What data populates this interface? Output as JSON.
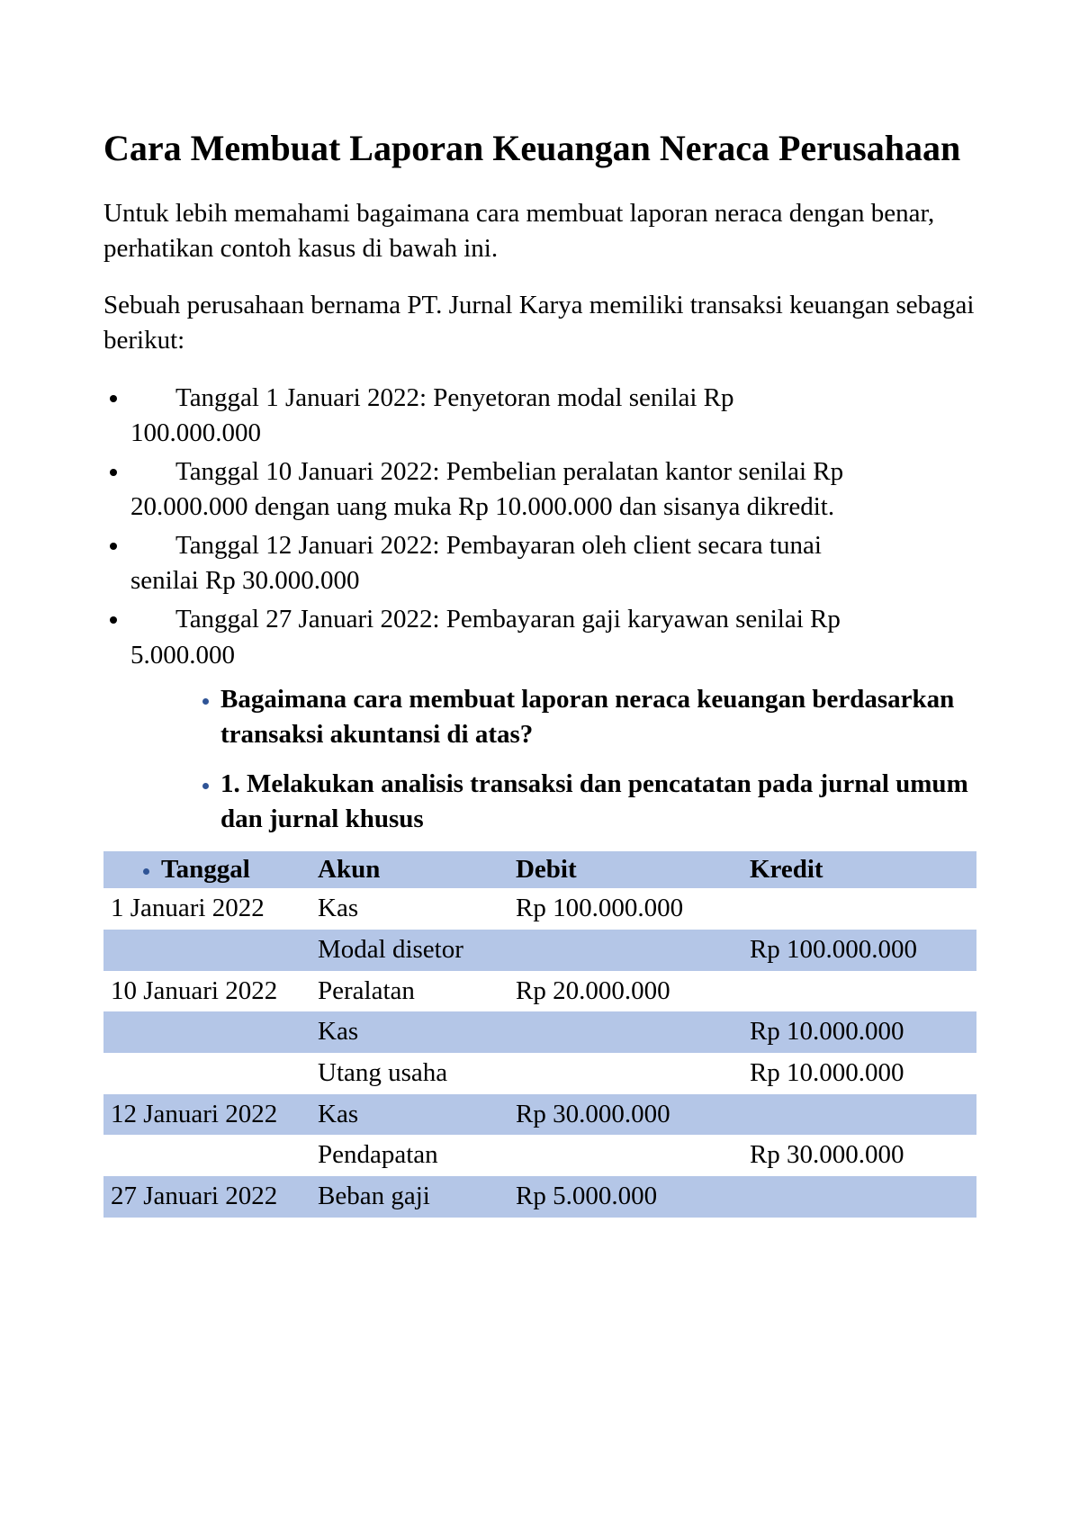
{
  "title": "Cara Membuat Laporan Keuangan Neraca Perusahaan",
  "para1": "Untuk lebih memahami bagaimana cara membuat laporan neraca dengan benar, perhatikan contoh kasus di bawah ini.",
  "para2": "Sebuah perusahaan bernama PT. Jurnal Karya memiliki transaksi keuangan sebagai berikut:",
  "transactions": [
    {
      "lead": "Tanggal 1 Januari 2022: Penyetoran modal senilai Rp",
      "wrap": "100.000.000"
    },
    {
      "lead": "Tanggal 10 Januari 2022: Pembelian peralatan kantor senilai Rp",
      "wrap": "20.000.000 dengan uang muka Rp 10.000.000 dan sisanya dikredit."
    },
    {
      "lead": "Tanggal 12 Januari 2022: Pembayaran oleh client secara tunai",
      "wrap": "senilai Rp 30.000.000"
    },
    {
      "lead": "Tanggal 27 Januari 2022: Pembayaran gaji karyawan senilai Rp",
      "wrap": "5.000.000"
    }
  ],
  "question": "Bagaimana cara membuat laporan neraca keuangan berdasarkan transaksi akuntansi di atas?",
  "step1": "1. Melakukan analisis transaksi dan pencatatan pada jurnal umum dan jurnal khusus",
  "table": {
    "header_colors": {
      "background": "#b4c6e7",
      "bullet_color": "#2f5496"
    },
    "columns": [
      "Tanggal",
      "Akun",
      "Debit",
      "Kredit"
    ],
    "rows": [
      {
        "shade": false,
        "date": "1 Januari 2022",
        "akun": "Kas",
        "debit": "Rp 100.000.000",
        "kredit": ""
      },
      {
        "shade": true,
        "date": "",
        "akun": "Modal disetor",
        "debit": "",
        "kredit": "Rp 100.000.000"
      },
      {
        "shade": false,
        "date": "10 Januari 2022",
        "akun": "Peralatan",
        "debit": "Rp 20.000.000",
        "kredit": ""
      },
      {
        "shade": true,
        "date": "",
        "akun": "Kas",
        "debit": "",
        "kredit": "Rp 10.000.000"
      },
      {
        "shade": false,
        "date": "",
        "akun": "Utang usaha",
        "debit": "",
        "kredit": "Rp 10.000.000"
      },
      {
        "shade": true,
        "date": "12 Januari 2022",
        "akun": "Kas",
        "debit": "Rp 30.000.000",
        "kredit": ""
      },
      {
        "shade": false,
        "date": "",
        "akun": "Pendapatan",
        "debit": "",
        "kredit": "Rp 30.000.000"
      },
      {
        "shade": true,
        "date": "27 Januari 2022",
        "akun": "Beban gaji",
        "debit": "Rp 5.000.000",
        "kredit": ""
      }
    ]
  }
}
